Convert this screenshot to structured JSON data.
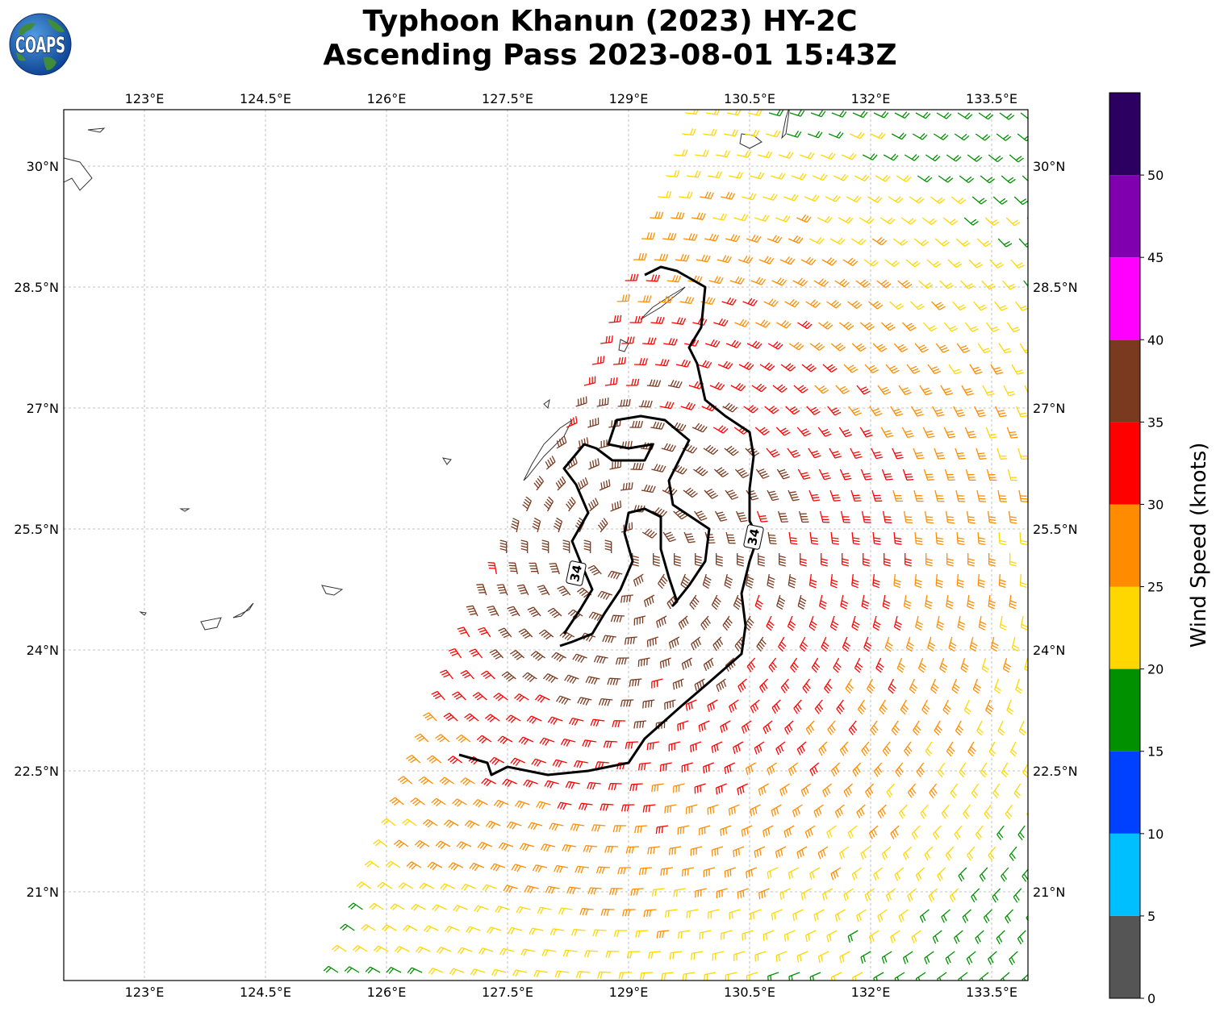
{
  "title": {
    "line1": "Typhoon Khanun (2023) HY-2C",
    "line2": "Ascending Pass 2023-08-01 15:43Z"
  },
  "logo": {
    "text": "COAPS",
    "icon": "globe-icon"
  },
  "map": {
    "projection": "plate-carree",
    "lon_range": [
      122.0,
      133.95
    ],
    "lat_range": [
      19.9,
      30.7
    ],
    "lon_ticks": [
      {
        "value": 123.0,
        "label": "123°E"
      },
      {
        "value": 124.5,
        "label": "124.5°E"
      },
      {
        "value": 126.0,
        "label": "126°E"
      },
      {
        "value": 127.5,
        "label": "127.5°E"
      },
      {
        "value": 129.0,
        "label": "129°E"
      },
      {
        "value": 130.5,
        "label": "130.5°E"
      },
      {
        "value": 132.0,
        "label": "132°E"
      },
      {
        "value": 133.5,
        "label": "133.5°E"
      }
    ],
    "lat_ticks": [
      {
        "value": 30.0,
        "label": "30°N"
      },
      {
        "value": 28.5,
        "label": "28.5°N"
      },
      {
        "value": 27.0,
        "label": "27°N"
      },
      {
        "value": 25.5,
        "label": "25.5°N"
      },
      {
        "value": 24.0,
        "label": "24°N"
      },
      {
        "value": 22.5,
        "label": "22.5°N"
      },
      {
        "value": 21.0,
        "label": "21°N"
      }
    ],
    "gridlines": true,
    "islands": [
      {
        "name": "tanegashima",
        "points": [
          [
            131.0,
            30.75
          ],
          [
            130.95,
            30.4
          ],
          [
            130.9,
            30.35
          ],
          [
            130.95,
            30.6
          ]
        ]
      },
      {
        "name": "yakushima",
        "points": [
          [
            130.4,
            30.4
          ],
          [
            130.55,
            30.38
          ],
          [
            130.65,
            30.3
          ],
          [
            130.5,
            30.22
          ],
          [
            130.38,
            30.28
          ]
        ]
      },
      {
        "name": "amami-oshima",
        "points": [
          [
            129.15,
            28.1
          ],
          [
            129.4,
            28.25
          ],
          [
            129.65,
            28.45
          ],
          [
            129.7,
            28.5
          ],
          [
            129.5,
            28.38
          ],
          [
            129.3,
            28.25
          ],
          [
            129.2,
            28.15
          ]
        ]
      },
      {
        "name": "tokunoshima",
        "points": [
          [
            128.9,
            27.85
          ],
          [
            129.0,
            27.8
          ],
          [
            128.95,
            27.7
          ],
          [
            128.88,
            27.72
          ]
        ]
      },
      {
        "name": "okinawa",
        "points": [
          [
            127.7,
            26.1
          ],
          [
            127.8,
            26.3
          ],
          [
            127.95,
            26.55
          ],
          [
            128.15,
            26.75
          ],
          [
            128.3,
            26.85
          ],
          [
            128.2,
            26.65
          ],
          [
            127.95,
            26.4
          ],
          [
            127.75,
            26.15
          ]
        ]
      },
      {
        "name": "yoronjima",
        "points": [
          [
            127.95,
            27.05
          ],
          [
            128.02,
            27.1
          ],
          [
            128.0,
            27.0
          ]
        ]
      },
      {
        "name": "kumejima",
        "points": [
          [
            126.7,
            26.38
          ],
          [
            126.8,
            26.36
          ],
          [
            126.75,
            26.3
          ]
        ]
      },
      {
        "name": "miyakojima",
        "points": [
          [
            125.2,
            24.8
          ],
          [
            125.45,
            24.75
          ],
          [
            125.35,
            24.68
          ],
          [
            125.25,
            24.7
          ]
        ]
      },
      {
        "name": "ishigaki",
        "points": [
          [
            124.1,
            24.4
          ],
          [
            124.3,
            24.5
          ],
          [
            124.35,
            24.58
          ],
          [
            124.2,
            24.42
          ]
        ]
      },
      {
        "name": "iriomote",
        "points": [
          [
            123.7,
            24.35
          ],
          [
            123.95,
            24.4
          ],
          [
            123.9,
            24.28
          ],
          [
            123.75,
            24.25
          ]
        ]
      },
      {
        "name": "yonaguni",
        "points": [
          [
            122.95,
            24.47
          ],
          [
            123.02,
            24.46
          ],
          [
            123.0,
            24.43
          ]
        ]
      },
      {
        "name": "senkaku",
        "points": [
          [
            123.45,
            25.75
          ],
          [
            123.55,
            25.75
          ],
          [
            123.5,
            25.72
          ]
        ]
      },
      {
        "name": "east-china-coast",
        "points": [
          [
            122.0,
            30.1
          ],
          [
            122.2,
            30.05
          ],
          [
            122.35,
            29.85
          ],
          [
            122.2,
            29.7
          ],
          [
            122.1,
            29.85
          ],
          [
            122.0,
            29.8
          ]
        ]
      },
      {
        "name": "zhoushan",
        "points": [
          [
            122.3,
            30.45
          ],
          [
            122.5,
            30.47
          ],
          [
            122.45,
            30.42
          ]
        ]
      }
    ]
  },
  "wind_field": {
    "swath_west_edge_west_lon": [
      [
        20.0,
        125.4
      ],
      [
        22.3,
        126.3
      ],
      [
        24.6,
        127.2
      ],
      [
        26.9,
        128.3
      ],
      [
        29.2,
        129.2
      ],
      [
        30.5,
        129.7
      ]
    ],
    "swath_west_edge_east_lon": [
      [
        20.0,
        134.0
      ],
      [
        30.7,
        134.0
      ]
    ],
    "spacing_deg": 0.26,
    "speed_bins_knots": [
      {
        "min": 0,
        "max": 5,
        "color": "#555555"
      },
      {
        "min": 5,
        "max": 10,
        "color": "#00bfff"
      },
      {
        "min": 10,
        "max": 15,
        "color": "#0040ff"
      },
      {
        "min": 15,
        "max": 20,
        "color": "#009000"
      },
      {
        "min": 20,
        "max": 25,
        "color": "#ffd700"
      },
      {
        "min": 25,
        "max": 30,
        "color": "#ff8c00"
      },
      {
        "min": 30,
        "max": 35,
        "color": "#ff0000"
      },
      {
        "min": 35,
        "max": 40,
        "color": "#7a3a20"
      },
      {
        "min": 40,
        "max": 45,
        "color": "#ff00ff"
      },
      {
        "min": 45,
        "max": 50,
        "color": "#8000b0"
      },
      {
        "min": 50,
        "max": 55,
        "color": "#2b0060"
      }
    ]
  },
  "contour_34kt": {
    "label": "34",
    "outer": [
      [
        129.2,
        28.65
      ],
      [
        129.4,
        28.75
      ],
      [
        129.6,
        28.7
      ],
      [
        129.95,
        28.5
      ],
      [
        129.9,
        28.0
      ],
      [
        129.75,
        27.75
      ],
      [
        129.85,
        27.55
      ],
      [
        129.95,
        27.1
      ],
      [
        130.2,
        26.9
      ],
      [
        130.5,
        26.7
      ],
      [
        130.55,
        26.4
      ],
      [
        130.5,
        26.0
      ],
      [
        130.5,
        25.6
      ],
      [
        130.6,
        25.4
      ],
      [
        130.5,
        25.1
      ],
      [
        130.4,
        24.7
      ],
      [
        130.45,
        24.3
      ],
      [
        130.4,
        23.95
      ],
      [
        130.0,
        23.6
      ],
      [
        129.65,
        23.3
      ],
      [
        129.2,
        22.9
      ],
      [
        129.0,
        22.6
      ],
      [
        128.5,
        22.5
      ],
      [
        128.0,
        22.45
      ],
      [
        127.5,
        22.55
      ],
      [
        127.3,
        22.45
      ],
      [
        127.25,
        22.6
      ],
      [
        126.9,
        22.7
      ]
    ],
    "inner": [
      [
        128.2,
        24.2
      ],
      [
        128.4,
        24.5
      ],
      [
        128.55,
        24.75
      ],
      [
        128.4,
        25.1
      ],
      [
        128.3,
        25.35
      ],
      [
        128.5,
        25.7
      ],
      [
        128.35,
        26.05
      ],
      [
        128.2,
        26.25
      ],
      [
        128.45,
        26.55
      ],
      [
        128.6,
        26.5
      ],
      [
        128.8,
        26.35
      ],
      [
        129.2,
        26.35
      ],
      [
        129.3,
        26.55
      ],
      [
        129.0,
        26.5
      ],
      [
        128.75,
        26.55
      ],
      [
        128.85,
        26.85
      ],
      [
        129.15,
        26.9
      ],
      [
        129.45,
        26.85
      ],
      [
        129.75,
        26.6
      ],
      [
        129.6,
        26.3
      ],
      [
        129.5,
        26.1
      ],
      [
        129.55,
        25.8
      ],
      [
        130.0,
        25.5
      ],
      [
        129.95,
        25.1
      ],
      [
        129.75,
        24.8
      ],
      [
        129.55,
        24.55
      ],
      [
        129.6,
        24.6
      ],
      [
        129.5,
        24.9
      ],
      [
        129.4,
        25.25
      ],
      [
        129.4,
        25.65
      ],
      [
        129.2,
        25.75
      ],
      [
        129.0,
        25.7
      ],
      [
        128.95,
        25.45
      ],
      [
        129.05,
        25.1
      ],
      [
        128.9,
        24.75
      ],
      [
        128.7,
        24.45
      ],
      [
        128.55,
        24.2
      ],
      [
        128.3,
        24.1
      ],
      [
        128.15,
        24.05
      ]
    ],
    "label_positions": [
      [
        128.35,
        24.95
      ],
      [
        130.55,
        25.4
      ]
    ]
  },
  "colorbar": {
    "label": "Wind Speed (knots)",
    "min": 0,
    "max": 55,
    "ticks": [
      {
        "value": 0,
        "label": "0"
      },
      {
        "value": 5,
        "label": "5"
      },
      {
        "value": 10,
        "label": "10"
      },
      {
        "value": 15,
        "label": "15"
      },
      {
        "value": 20,
        "label": "20"
      },
      {
        "value": 25,
        "label": "25"
      },
      {
        "value": 30,
        "label": "30"
      },
      {
        "value": 35,
        "label": "35"
      },
      {
        "value": 40,
        "label": "40"
      },
      {
        "value": 45,
        "label": "45"
      },
      {
        "value": 50,
        "label": "50"
      }
    ]
  }
}
